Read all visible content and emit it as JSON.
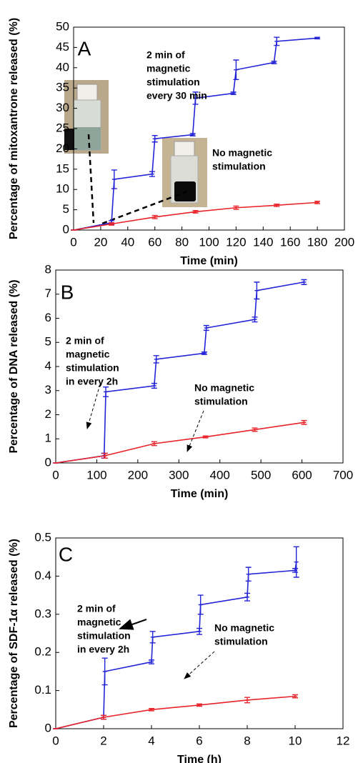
{
  "chart_data": [
    {
      "type": "line",
      "panel_label": "A",
      "x_label": "Time (min)",
      "y_label": "Percentage of mitoxantrone released (%)",
      "xlim": [
        0,
        200
      ],
      "xticks": [
        0,
        20,
        40,
        60,
        80,
        100,
        120,
        140,
        160,
        180,
        200
      ],
      "ylim": [
        0,
        50
      ],
      "yticks": [
        0,
        5,
        10,
        15,
        20,
        25,
        30,
        35,
        40,
        45,
        50
      ],
      "series": [
        {
          "color": "#2323d8",
          "x": [
            0,
            28,
            30,
            58,
            60,
            88,
            90,
            118,
            120,
            148,
            150,
            180
          ],
          "values": [
            0,
            1.8,
            12.5,
            13.8,
            22.5,
            23.5,
            32.5,
            33.7,
            39.5,
            41.3,
            46.5,
            47.3
          ],
          "errors": [
            0,
            0.5,
            2.3,
            0.6,
            0.8,
            0.3,
            1.5,
            0.3,
            2.4,
            0.3,
            1.0,
            0.2
          ]
        },
        {
          "color": "#e8242a",
          "x": [
            0,
            28,
            60,
            90,
            120,
            150,
            180
          ],
          "values": [
            0,
            1.5,
            3.2,
            4.5,
            5.5,
            6.1,
            6.8
          ],
          "errors": [
            0,
            0.3,
            0.4,
            0.3,
            0.4,
            0.3,
            0.3
          ]
        }
      ],
      "annotations": [
        [
          "2 min of",
          "magnetic",
          "stimulation",
          "every 30 min"
        ],
        [
          "No magnetic",
          "stimulation"
        ]
      ]
    },
    {
      "type": "line",
      "panel_label": "B",
      "x_label": "Time (min)",
      "y_label": "Percentage of DNA released (%)",
      "xlim": [
        0,
        700
      ],
      "xticks": [
        0,
        100,
        200,
        300,
        400,
        500,
        600,
        700
      ],
      "ylim": [
        0,
        8
      ],
      "yticks": [
        0,
        1,
        2,
        3,
        4,
        5,
        6,
        7,
        8
      ],
      "series": [
        {
          "color": "#2323d8",
          "x": [
            0,
            118,
            122,
            240,
            245,
            362,
            367,
            485,
            490,
            605
          ],
          "values": [
            0,
            0.3,
            2.95,
            3.2,
            4.3,
            4.55,
            5.6,
            5.95,
            7.15,
            7.5
          ],
          "errors": [
            0,
            0.1,
            0.2,
            0.1,
            0.15,
            0.05,
            0.1,
            0.1,
            0.35,
            0.1
          ]
        },
        {
          "color": "#e8242a",
          "x": [
            0,
            120,
            240,
            365,
            485,
            605
          ],
          "values": [
            0,
            0.3,
            0.8,
            1.08,
            1.38,
            1.68
          ],
          "errors": [
            0,
            0.1,
            0.08,
            0.04,
            0.07,
            0.08
          ]
        }
      ],
      "annotations": [
        [
          "2 min of",
          "magnetic",
          "stimulation",
          "in every 2h"
        ],
        [
          "No magnetic",
          "stimulation"
        ]
      ]
    },
    {
      "type": "line",
      "panel_label": "C",
      "x_label": "Time (h)",
      "y_label": "Percentage of SDF-1α released (%)",
      "xlim": [
        0,
        12
      ],
      "xticks": [
        0,
        2,
        4,
        6,
        8,
        10,
        12
      ],
      "ylim": [
        0,
        0.5
      ],
      "yticks": [
        0,
        0.1,
        0.2,
        0.3,
        0.4,
        0.5
      ],
      "series": [
        {
          "color": "#2323d8",
          "x": [
            0,
            2,
            2.05,
            4,
            4.05,
            6,
            6.05,
            8,
            8.05,
            10,
            10.05
          ],
          "values": [
            0,
            0.03,
            0.15,
            0.175,
            0.24,
            0.255,
            0.325,
            0.345,
            0.405,
            0.415,
            0.437
          ],
          "errors": [
            0,
            0.005,
            0.035,
            0.005,
            0.015,
            0.008,
            0.025,
            0.01,
            0.018,
            0.005,
            0.04
          ]
        },
        {
          "color": "#e8242a",
          "x": [
            0,
            2,
            4,
            6,
            8,
            10
          ],
          "values": [
            0,
            0.03,
            0.05,
            0.062,
            0.075,
            0.085
          ],
          "errors": [
            0,
            0.005,
            0.003,
            0.003,
            0.007,
            0.004
          ]
        }
      ],
      "annotations": [
        [
          "2 min of",
          "magnetic",
          "stimulation",
          "in every 2h"
        ],
        [
          "No magnetic",
          "stimulation"
        ]
      ]
    }
  ]
}
